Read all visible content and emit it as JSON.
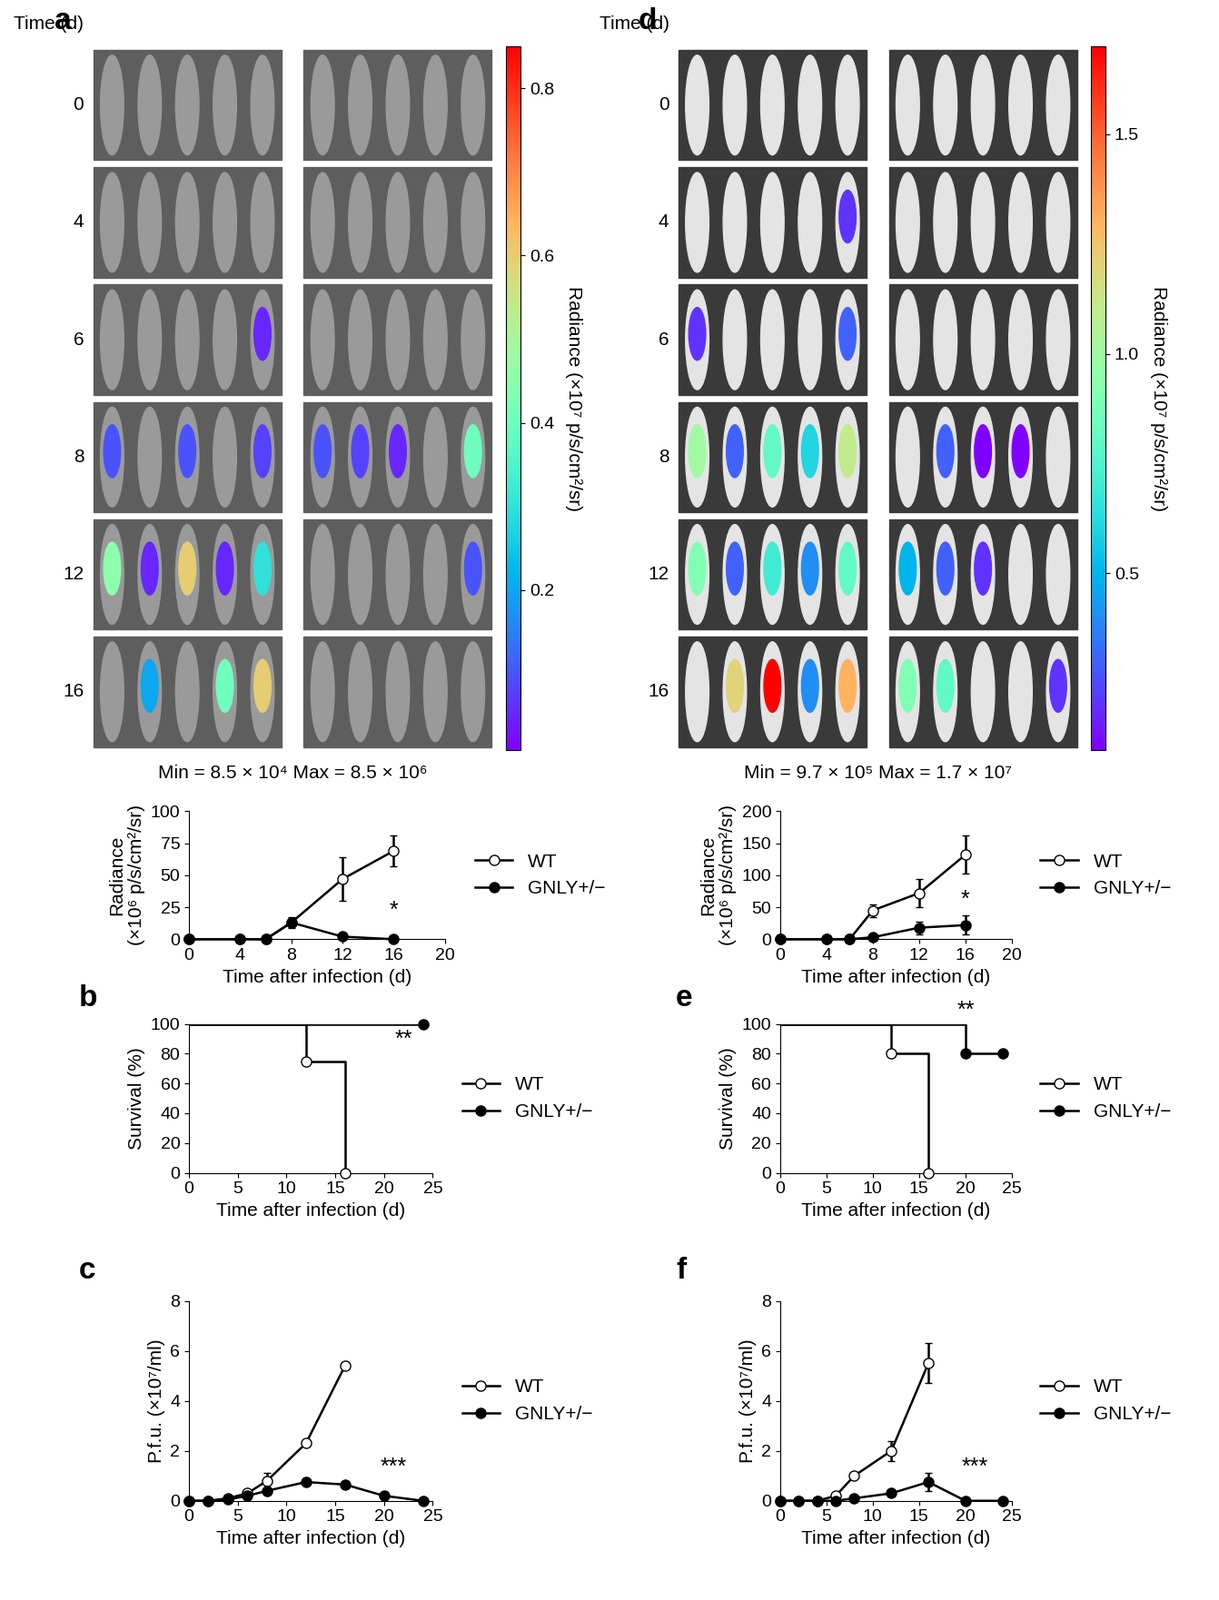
{
  "chart_data": [
    {
      "type": "image_grid",
      "title": "a",
      "row_label": "Time (d)",
      "rows": [
        0,
        4,
        6,
        8,
        12,
        16
      ],
      "signal": [
        [
          null,
          null,
          null,
          null,
          null,
          null,
          null,
          null,
          null,
          null
        ],
        [
          null,
          null,
          null,
          null,
          null,
          null,
          null,
          null,
          null,
          null
        ],
        [
          null,
          null,
          null,
          null,
          0.05,
          null,
          null,
          null,
          null,
          null
        ],
        [
          0.1,
          null,
          0.1,
          null,
          0.08,
          0.1,
          0.08,
          0.05,
          null,
          0.4
        ],
        [
          0.45,
          0.05,
          0.6,
          0.05,
          0.3,
          null,
          null,
          null,
          null,
          0.1
        ],
        [
          null,
          0.2,
          null,
          0.4,
          0.6,
          null,
          null,
          null,
          null,
          null
        ]
      ],
      "colorbar": {
        "label": "Radiance (×10⁷ p/s/cm²/sr)",
        "range": [
          0.0085,
          0.85
        ],
        "ticks": [
          0.2,
          0.4,
          0.6,
          0.8
        ]
      },
      "caption": "Min = 8.5 × 10⁴ Max = 8.5 × 10⁶"
    },
    {
      "type": "image_grid",
      "title": "d",
      "row_label": "Time (d)",
      "rows": [
        0,
        4,
        6,
        8,
        12,
        16
      ],
      "signal": [
        [
          null,
          null,
          null,
          null,
          null,
          null,
          null,
          null,
          null,
          null
        ],
        [
          null,
          null,
          null,
          null,
          0.2,
          null,
          null,
          null,
          null,
          null
        ],
        [
          0.2,
          null,
          null,
          null,
          0.3,
          null,
          null,
          null,
          null,
          null
        ],
        [
          1.0,
          0.3,
          0.8,
          0.6,
          1.1,
          null,
          0.3,
          0.1,
          0.1,
          null
        ],
        [
          0.9,
          0.3,
          0.7,
          0.4,
          0.8,
          0.5,
          0.3,
          0.2,
          null,
          null
        ],
        [
          null,
          1.2,
          1.7,
          0.4,
          1.3,
          0.9,
          0.8,
          null,
          null,
          0.2
        ]
      ],
      "colorbar": {
        "label": "Radiance (×10⁷ p/s/cm²/sr)",
        "range": [
          0.097,
          1.7
        ],
        "ticks": [
          0.5,
          1.0,
          1.5
        ]
      },
      "caption": "Min = 9.7 × 10⁵ Max = 1.7 × 10⁷"
    },
    {
      "type": "line",
      "title": "",
      "x_label": "Time after infection (d)",
      "y_label": "Radiance\n(×10⁶ p/s/cm²/sr)",
      "x": [
        0,
        4,
        6,
        8,
        12,
        16
      ],
      "xlim": [
        0,
        20
      ],
      "xticks": [
        0,
        4,
        8,
        12,
        16,
        20
      ],
      "ylim": [
        0,
        100
      ],
      "yticks": [
        0,
        25,
        50,
        75,
        100
      ],
      "legend": "center left",
      "series": [
        {
          "name": "WT",
          "color": "#000000",
          "marker": "open_circle",
          "values": [
            0,
            0,
            0,
            13,
            47,
            69
          ],
          "errors": [
            0,
            0,
            0,
            3,
            17,
            12
          ]
        },
        {
          "name": "GNLY+/−",
          "color": "#000000",
          "marker": "circle",
          "values": [
            0,
            0,
            0,
            13,
            2,
            0
          ],
          "errors": [
            0,
            0,
            0,
            4,
            1,
            0
          ]
        }
      ],
      "annotations": [
        {
          "text": "*",
          "x": 16,
          "y": 14
        }
      ]
    },
    {
      "type": "line",
      "title": "",
      "x_label": "Time after infection (d)",
      "y_label": "Radiance\n(×10⁶ p/s/cm²/sr)",
      "x": [
        0,
        4,
        6,
        8,
        12,
        16
      ],
      "xlim": [
        0,
        20
      ],
      "xticks": [
        0,
        4,
        8,
        12,
        16,
        20
      ],
      "ylim": [
        0,
        200
      ],
      "yticks": [
        0,
        50,
        100,
        150,
        200
      ],
      "legend": "center left",
      "series": [
        {
          "name": "WT",
          "color": "#000000",
          "marker": "open_circle",
          "values": [
            0,
            0,
            0,
            45,
            72,
            132
          ],
          "errors": [
            0,
            0,
            0,
            10,
            22,
            30
          ]
        },
        {
          "name": "GNLY+/−",
          "color": "#000000",
          "marker": "circle",
          "values": [
            0,
            0,
            0,
            3,
            18,
            22
          ],
          "errors": [
            0,
            0,
            0,
            2,
            10,
            15
          ]
        }
      ],
      "annotations": [
        {
          "text": "*",
          "x": 16,
          "y": 45
        }
      ]
    },
    {
      "type": "step",
      "title": "b",
      "x_label": "Time after infection (d)",
      "y_label": "Survival (%)",
      "xlim": [
        0,
        25
      ],
      "xticks": [
        0,
        5,
        10,
        15,
        20,
        25
      ],
      "ylim": [
        0,
        100
      ],
      "yticks": [
        0,
        20,
        40,
        60,
        80,
        100
      ],
      "legend": "center left",
      "series": [
        {
          "name": "WT",
          "color": "#000000",
          "marker": "open_circle",
          "x": [
            0,
            12,
            16
          ],
          "values": [
            100,
            75,
            0
          ]
        },
        {
          "name": "GNLY+/−",
          "color": "#000000",
          "marker": "circle",
          "x": [
            0,
            24
          ],
          "values": [
            100,
            100
          ]
        }
      ],
      "annotations": [
        {
          "text": "**",
          "x": 22,
          "y": 82
        }
      ]
    },
    {
      "type": "step",
      "title": "e",
      "x_label": "Time after infection (d)",
      "y_label": "Survival (%)",
      "xlim": [
        0,
        25
      ],
      "xticks": [
        0,
        5,
        10,
        15,
        20,
        25
      ],
      "ylim": [
        0,
        100
      ],
      "yticks": [
        0,
        20,
        40,
        60,
        80,
        100
      ],
      "legend": "center left",
      "series": [
        {
          "name": "WT",
          "color": "#000000",
          "marker": "open_circle",
          "x": [
            0,
            12,
            16
          ],
          "values": [
            100,
            80,
            0
          ]
        },
        {
          "name": "GNLY+/−",
          "color": "#000000",
          "marker": "circle",
          "x": [
            0,
            20,
            24
          ],
          "values": [
            100,
            80,
            80
          ]
        }
      ],
      "annotations": [
        {
          "text": "**",
          "x": 20,
          "y": 102
        }
      ]
    },
    {
      "type": "line",
      "title": "c",
      "x_label": "Time after infection (d)",
      "y_label": "P.f.u. (×10⁷/ml)",
      "xlim": [
        0,
        25
      ],
      "xticks": [
        0,
        5,
        10,
        15,
        20,
        25
      ],
      "ylim": [
        0,
        8
      ],
      "yticks": [
        0,
        2,
        4,
        6,
        8
      ],
      "legend": "center left",
      "series": [
        {
          "name": "WT",
          "color": "#000000",
          "marker": "open_circle",
          "x": [
            0,
            2,
            4,
            6,
            8,
            12,
            16
          ],
          "values": [
            0,
            0,
            0.1,
            0.3,
            0.8,
            2.3,
            5.4
          ],
          "errors": [
            0,
            0,
            0,
            0.1,
            0.3,
            0.1,
            0.15
          ]
        },
        {
          "name": "GNLY+/−",
          "color": "#000000",
          "marker": "circle",
          "x": [
            0,
            2,
            4,
            6,
            8,
            12,
            16,
            20,
            24
          ],
          "values": [
            0,
            0,
            0.05,
            0.2,
            0.4,
            0.75,
            0.65,
            0.2,
            0
          ],
          "errors": [
            0,
            0,
            0,
            0.05,
            0.1,
            0.1,
            0.1,
            0.05,
            0
          ]
        }
      ],
      "annotations": [
        {
          "text": "***",
          "x": 21,
          "y": 0.9
        }
      ]
    },
    {
      "type": "line",
      "title": "f",
      "x_label": "Time after infection (d)",
      "y_label": "P.f.u. (×10⁷/ml)",
      "xlim": [
        0,
        25
      ],
      "xticks": [
        0,
        5,
        10,
        15,
        20,
        25
      ],
      "ylim": [
        0,
        8
      ],
      "yticks": [
        0,
        2,
        4,
        6,
        8
      ],
      "legend": "center left",
      "series": [
        {
          "name": "WT",
          "color": "#000000",
          "marker": "open_circle",
          "x": [
            0,
            2,
            4,
            6,
            8,
            12,
            16
          ],
          "values": [
            0,
            0,
            0,
            0.2,
            1.0,
            2.0,
            5.5
          ],
          "errors": [
            0,
            0,
            0,
            0.05,
            0.1,
            0.4,
            0.8
          ]
        },
        {
          "name": "GNLY+/−",
          "color": "#000000",
          "marker": "circle",
          "x": [
            0,
            2,
            4,
            6,
            8,
            12,
            16,
            20,
            24
          ],
          "values": [
            0,
            0,
            0,
            0,
            0.1,
            0.3,
            0.75,
            0,
            0
          ],
          "errors": [
            0,
            0,
            0,
            0,
            0.05,
            0.1,
            0.35,
            0,
            0
          ]
        }
      ],
      "annotations": [
        {
          "text": "***",
          "x": 21,
          "y": 0.9
        }
      ]
    }
  ]
}
